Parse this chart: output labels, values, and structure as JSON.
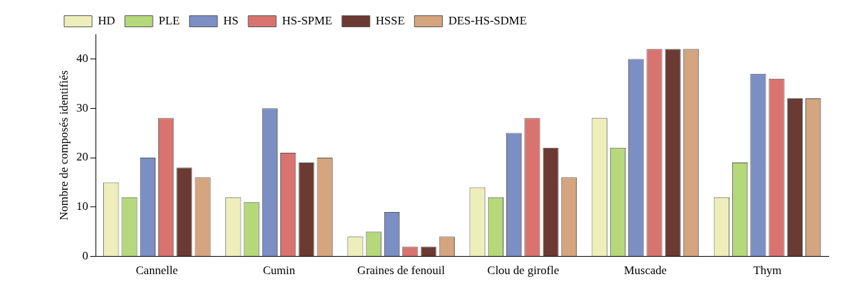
{
  "chart_data": {
    "type": "bar",
    "ylabel": "Nombre de composés identifiés",
    "categories": [
      "Cannelle",
      "Cumin",
      "Graines de fenouil",
      "Clou de girofle",
      "Muscade",
      "Thym"
    ],
    "series": [
      {
        "name": "HD",
        "color": "#eeeebb",
        "values": [
          15,
          12,
          4,
          14,
          28,
          12
        ]
      },
      {
        "name": "PLE",
        "color": "#b5d87a",
        "values": [
          12,
          11,
          5,
          12,
          22,
          19
        ]
      },
      {
        "name": "HS",
        "color": "#7b8fc4",
        "values": [
          20,
          30,
          9,
          25,
          40,
          37
        ]
      },
      {
        "name": "HS-SPME",
        "color": "#d9736f",
        "values": [
          28,
          21,
          2,
          28,
          42,
          36
        ]
      },
      {
        "name": "HSSE",
        "color": "#6b3a33",
        "values": [
          18,
          19,
          2,
          22,
          42,
          32
        ]
      },
      {
        "name": "DES-HS-SDME",
        "color": "#d4a57e",
        "values": [
          16,
          20,
          4,
          16,
          42,
          32
        ]
      }
    ],
    "ylim": [
      0,
      45
    ],
    "yticks": [
      0,
      10,
      20,
      30,
      40
    ],
    "grid": false,
    "legend": "top left"
  }
}
